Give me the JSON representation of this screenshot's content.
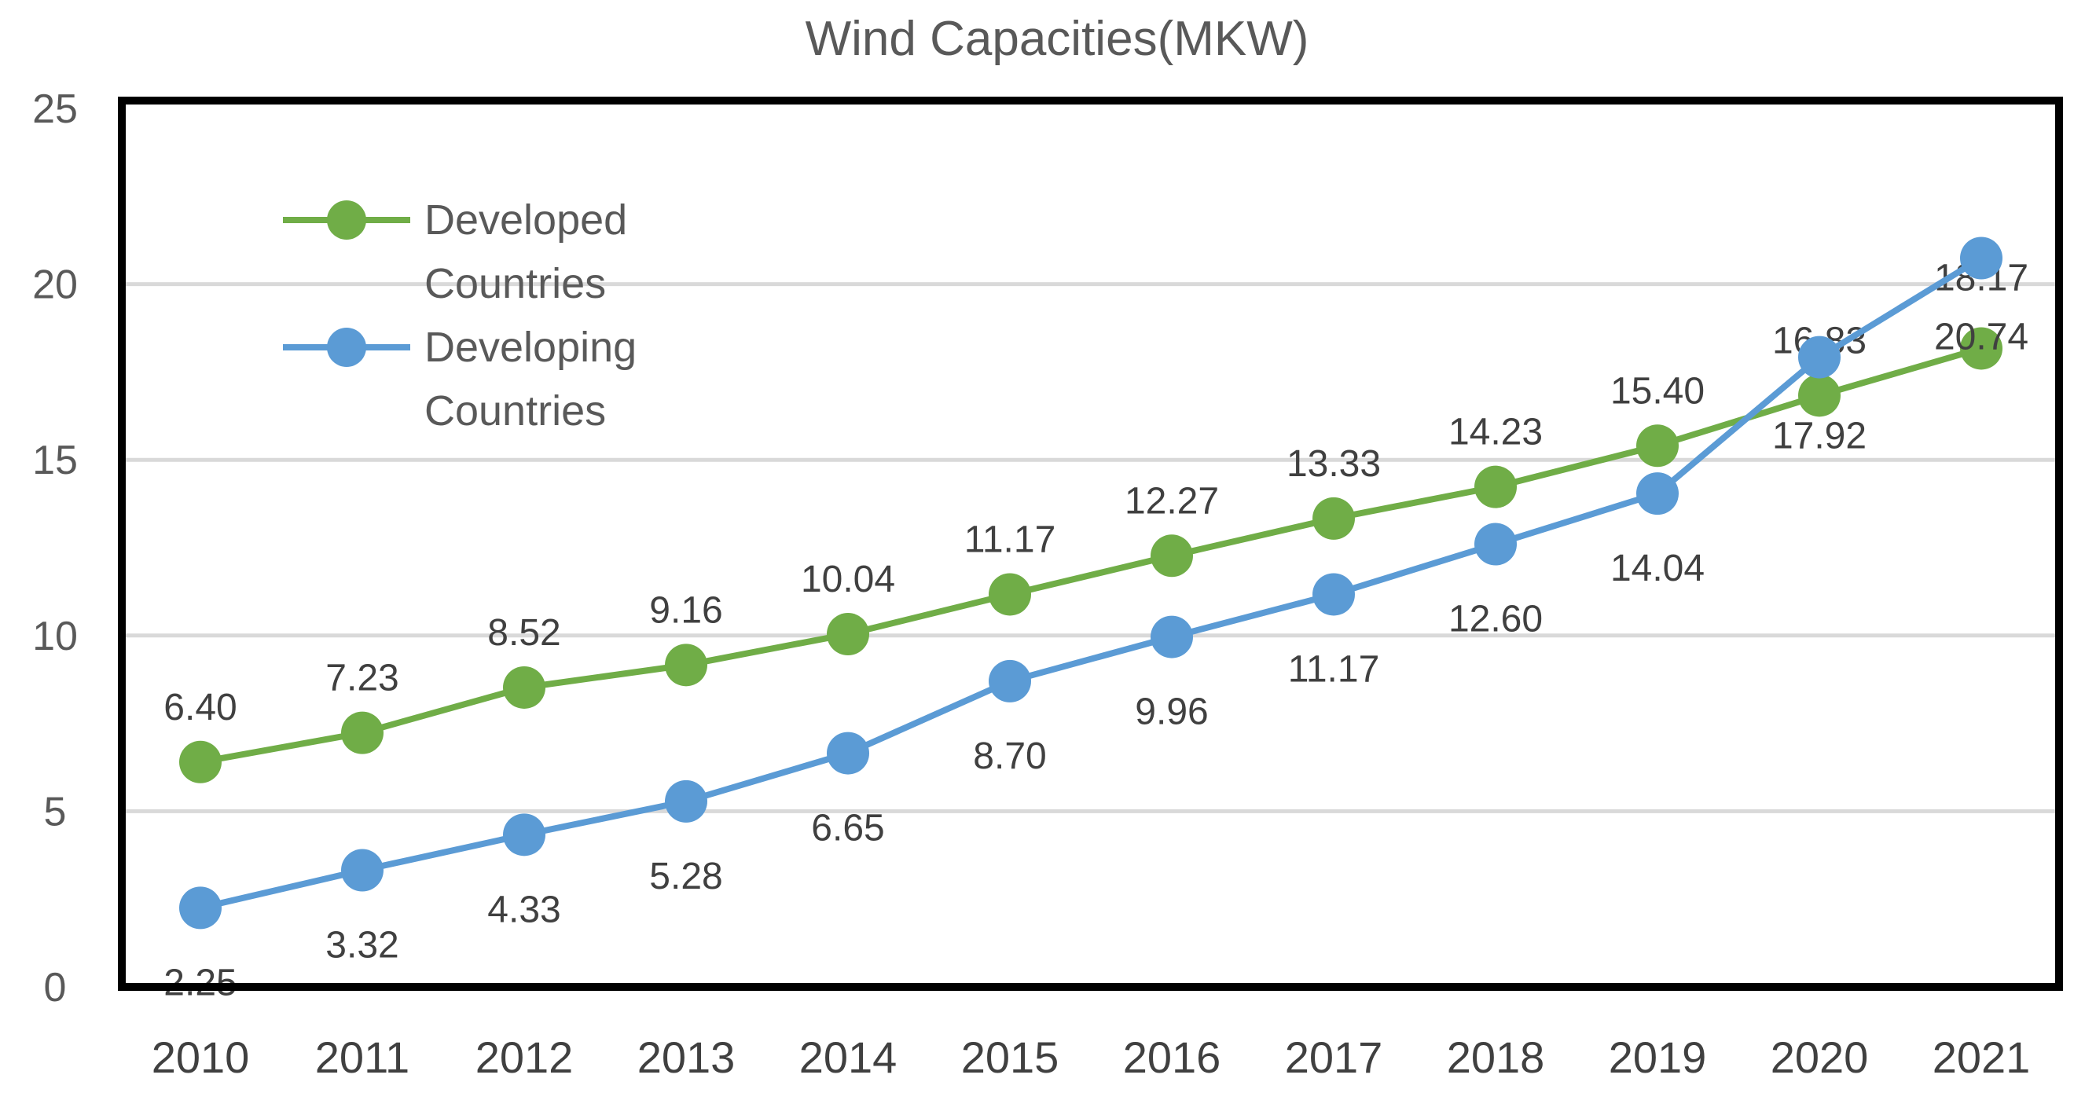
{
  "chart_data": {
    "type": "line",
    "title": "Wind Capacities(MKW)",
    "xlabel": "",
    "ylabel": "",
    "categories": [
      "2010",
      "2011",
      "2012",
      "2013",
      "2014",
      "2015",
      "2016",
      "2017",
      "2018",
      "2019",
      "2020",
      "2021"
    ],
    "ylim": [
      0,
      25
    ],
    "yticks": [
      "0",
      "5",
      "10",
      "15",
      "20",
      "25"
    ],
    "grid": true,
    "legend_position": "top-left",
    "series": [
      {
        "name": "Developed Countries",
        "legend_lines": [
          "Developed",
          "Countries"
        ],
        "color": "#70AD47",
        "values": [
          6.4,
          7.23,
          8.52,
          9.16,
          10.04,
          11.17,
          12.27,
          13.33,
          14.23,
          15.4,
          16.83,
          18.17
        ],
        "labels": [
          "6.40",
          "7.23",
          "8.52",
          "9.16",
          "10.04",
          "11.17",
          "12.27",
          "13.33",
          "14.23",
          "15.40",
          "16.83",
          "18.17"
        ]
      },
      {
        "name": "Developing Countries",
        "legend_lines": [
          "Developing",
          "Countries"
        ],
        "color": "#5B9BD5",
        "values": [
          2.25,
          3.32,
          4.33,
          5.28,
          6.65,
          8.7,
          9.96,
          11.17,
          12.6,
          14.04,
          17.92,
          20.74
        ],
        "labels": [
          "2.25",
          "3.32",
          "4.33",
          "5.28",
          "6.65",
          "8.70",
          "9.96",
          "11.17",
          "12.60",
          "14.04",
          "17.92",
          "20.74"
        ]
      }
    ]
  }
}
